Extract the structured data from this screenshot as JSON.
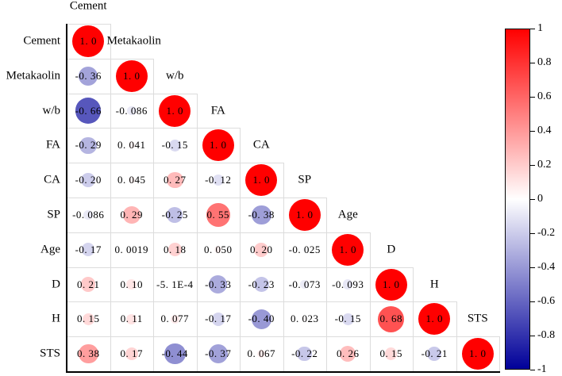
{
  "chart_data": {
    "type": "heatmap",
    "subtype": "correlation-matrix-lower-triangle-circles",
    "title": "",
    "variables": [
      "Cement",
      "Metakaolin",
      "w/b",
      "FA",
      "CA",
      "SP",
      "Age",
      "D",
      "H",
      "STS"
    ],
    "matrix_labels": [
      [
        "1.0"
      ],
      [
        "-0.36",
        "1.0"
      ],
      [
        "-0.66",
        "-0.086",
        "1.0"
      ],
      [
        "-0.29",
        "0.041",
        "-0.15",
        "1.0"
      ],
      [
        "-0.20",
        "0.045",
        "0.27",
        "-0.12",
        "1.0"
      ],
      [
        "-0.086",
        "0.29",
        "-0.25",
        "0.55",
        "-0.38",
        "1.0"
      ],
      [
        "-0.17",
        "0.0019",
        "0.18",
        "0.050",
        "0.20",
        "-0.025",
        "1.0"
      ],
      [
        "0.21",
        "0.10",
        "-5.1E-4",
        "-0.33",
        "-0.23",
        "-0.073",
        "-0.093",
        "1.0"
      ],
      [
        "0.15",
        "0.11",
        "0.077",
        "-0.17",
        "-0.40",
        "0.023",
        "-0.15",
        "0.68",
        "1.0"
      ],
      [
        "0.38",
        "0.17",
        "-0.44",
        "-0.37",
        "0.067",
        "-0.22",
        "0.26",
        "0.15",
        "-0.21",
        "1.0"
      ]
    ],
    "matrix": [
      [
        1.0
      ],
      [
        -0.36,
        1.0
      ],
      [
        -0.66,
        -0.086,
        1.0
      ],
      [
        -0.29,
        0.041,
        -0.15,
        1.0
      ],
      [
        -0.2,
        0.045,
        0.27,
        -0.12,
        1.0
      ],
      [
        -0.086,
        0.29,
        -0.25,
        0.55,
        -0.38,
        1.0
      ],
      [
        -0.17,
        0.0019,
        0.18,
        0.05,
        0.2,
        -0.025,
        1.0
      ],
      [
        0.21,
        0.1,
        -0.00051,
        -0.33,
        -0.23,
        -0.073,
        -0.093,
        1.0
      ],
      [
        0.15,
        0.11,
        0.077,
        -0.17,
        -0.4,
        0.023,
        -0.15,
        0.68,
        1.0
      ],
      [
        0.38,
        0.17,
        -0.44,
        -0.37,
        0.067,
        -0.22,
        0.26,
        0.15,
        -0.21,
        1.0
      ]
    ],
    "colorbar": {
      "range": [
        -1,
        1
      ],
      "ticks": [
        "1",
        "0.8",
        "0.6",
        "0.4",
        "0.2",
        "0",
        "-0.2",
        "-0.4",
        "-0.6",
        "-0.8",
        "-1"
      ],
      "colors": {
        "positive": "#ff0000",
        "zero": "#ffffff",
        "negative": "#000099"
      }
    },
    "xlabel": "",
    "ylabel": "",
    "grid": true,
    "legend_position": "right"
  }
}
